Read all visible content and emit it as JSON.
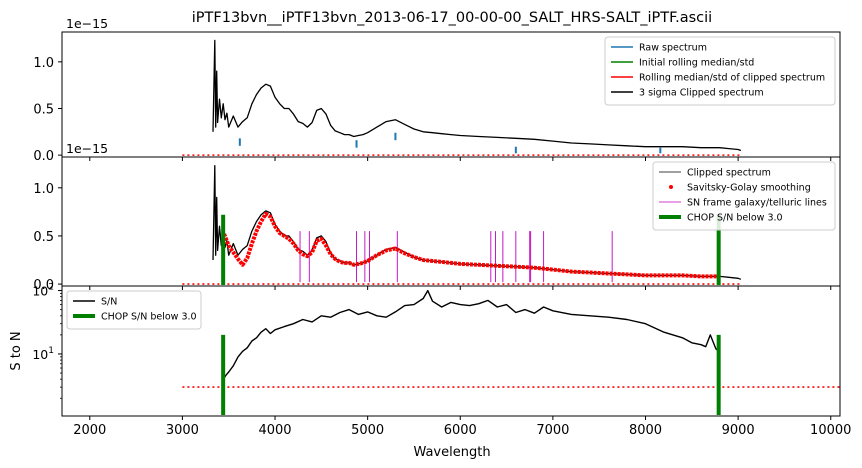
{
  "title": "iPTF13bvn__iPTF13bvn_2013-06-17_00-00-00_SALT_HRS-SALT_iPTF.ascii",
  "colors": {
    "raw": "#1f77b4",
    "green": "#008000",
    "red": "#ff0000",
    "black": "#000000",
    "magenta": "#bf00bf"
  },
  "xaxis": {
    "label": "Wavelength",
    "ticks": [
      "2000",
      "3000",
      "4000",
      "5000",
      "6000",
      "7000",
      "8000",
      "9000",
      "10000"
    ],
    "range": [
      1700,
      10100
    ]
  },
  "chart_data": [
    {
      "type": "line",
      "panel": "top",
      "offset_text": "1e−15",
      "ylim": [
        -0.02,
        1.32
      ],
      "yticks": [
        "0.0",
        "0.5",
        "1.0"
      ],
      "legend_position": "top-right",
      "legend": [
        "Raw spectrum",
        "Initial rolling median/std",
        "Rolling median/std of clipped spectrum",
        "3 sigma Clipped spectrum"
      ],
      "series": [
        {
          "name": "3 sigma Clipped spectrum",
          "x": [
            3330,
            3350,
            3360,
            3370,
            3380,
            3400,
            3420,
            3440,
            3460,
            3480,
            3500,
            3550,
            3600,
            3650,
            3700,
            3750,
            3800,
            3850,
            3900,
            3950,
            4000,
            4050,
            4100,
            4150,
            4200,
            4250,
            4300,
            4350,
            4400,
            4450,
            4500,
            4550,
            4600,
            4650,
            4700,
            4750,
            4800,
            4850,
            4900,
            4950,
            5000,
            5100,
            5200,
            5300,
            5400,
            5500,
            5600,
            5700,
            5800,
            5900,
            6000,
            6200,
            6400,
            6600,
            6800,
            7000,
            7200,
            7400,
            7600,
            7800,
            8000,
            8200,
            8400,
            8600,
            8800,
            8900,
            9000,
            9030
          ],
          "y": [
            0.25,
            1.23,
            0.3,
            0.9,
            0.35,
            0.6,
            0.4,
            0.55,
            0.38,
            0.45,
            0.3,
            0.42,
            0.3,
            0.36,
            0.4,
            0.55,
            0.65,
            0.72,
            0.76,
            0.74,
            0.62,
            0.55,
            0.5,
            0.5,
            0.44,
            0.36,
            0.34,
            0.3,
            0.35,
            0.48,
            0.5,
            0.44,
            0.32,
            0.26,
            0.24,
            0.22,
            0.22,
            0.2,
            0.21,
            0.22,
            0.24,
            0.3,
            0.36,
            0.38,
            0.33,
            0.28,
            0.25,
            0.24,
            0.23,
            0.22,
            0.21,
            0.2,
            0.19,
            0.18,
            0.17,
            0.15,
            0.13,
            0.12,
            0.11,
            0.1,
            0.09,
            0.09,
            0.09,
            0.08,
            0.08,
            0.07,
            0.06,
            0.05
          ]
        },
        {
          "name": "Raw spectrum",
          "x": [
            3620,
            4880,
            5300,
            6600,
            8160
          ],
          "y": [
            0.18,
            0.16,
            0.24,
            0.09,
            0.08
          ]
        },
        {
          "name": "Dotted level",
          "x": [
            3000,
            9040
          ],
          "y": [
            0.0,
            0.0
          ]
        }
      ]
    },
    {
      "type": "line",
      "panel": "middle",
      "offset_text": "1e−15",
      "ylim": [
        -0.02,
        1.32
      ],
      "yticks": [
        "0.0",
        "0.5",
        "1.0"
      ],
      "legend_position": "top-right",
      "legend": [
        "Clipped spectrum",
        "Savitsky-Golay smoothing",
        "SN frame galaxy/telluric lines",
        "CHOP S/N below 3.0"
      ],
      "series": [
        {
          "name": "Clipped spectrum",
          "x": [
            3330,
            3350,
            3360,
            3370,
            3380,
            3400,
            3420,
            3440,
            3460,
            3480,
            3500,
            3550,
            3600,
            3650,
            3700,
            3750,
            3800,
            3850,
            3900,
            3950,
            4000,
            4050,
            4100,
            4150,
            4200,
            4250,
            4300,
            4350,
            4400,
            4450,
            4500,
            4550,
            4600,
            4650,
            4700,
            4750,
            4800,
            4850,
            4900,
            4950,
            5000,
            5100,
            5200,
            5300,
            5400,
            5500,
            5600,
            5700,
            5800,
            5900,
            6000,
            6200,
            6400,
            6600,
            6800,
            7000,
            7200,
            7400,
            7600,
            7800,
            8000,
            8200,
            8400,
            8600,
            8800,
            8900,
            9000,
            9030
          ],
          "y": [
            0.25,
            1.23,
            0.3,
            0.9,
            0.35,
            0.6,
            0.4,
            0.55,
            0.38,
            0.45,
            0.3,
            0.42,
            0.3,
            0.36,
            0.4,
            0.55,
            0.65,
            0.72,
            0.76,
            0.74,
            0.62,
            0.55,
            0.5,
            0.5,
            0.44,
            0.36,
            0.34,
            0.3,
            0.35,
            0.48,
            0.5,
            0.44,
            0.32,
            0.26,
            0.24,
            0.22,
            0.22,
            0.2,
            0.21,
            0.22,
            0.24,
            0.3,
            0.36,
            0.38,
            0.33,
            0.28,
            0.25,
            0.24,
            0.23,
            0.22,
            0.21,
            0.2,
            0.19,
            0.18,
            0.17,
            0.15,
            0.13,
            0.12,
            0.11,
            0.1,
            0.09,
            0.09,
            0.09,
            0.08,
            0.08,
            0.07,
            0.06,
            0.05
          ]
        },
        {
          "name": "Savitsky-Golay smoothing",
          "x": [
            3450,
            3500,
            3550,
            3600,
            3650,
            3700,
            3750,
            3800,
            3850,
            3900,
            3950,
            4000,
            4050,
            4100,
            4150,
            4200,
            4250,
            4300,
            4350,
            4400,
            4450,
            4500,
            4550,
            4600,
            4650,
            4700,
            4750,
            4800,
            4850,
            4900,
            4950,
            5000,
            5100,
            5200,
            5300,
            5400,
            5500,
            5600,
            5700,
            5800,
            5900,
            6000,
            6200,
            6400,
            6600,
            6800,
            7000,
            7200,
            7400,
            7600,
            7800,
            8000,
            8200,
            8400,
            8600,
            8800
          ],
          "y": [
            0.52,
            0.4,
            0.33,
            0.26,
            0.2,
            0.27,
            0.42,
            0.55,
            0.65,
            0.73,
            0.7,
            0.6,
            0.53,
            0.5,
            0.47,
            0.42,
            0.35,
            0.31,
            0.29,
            0.33,
            0.45,
            0.47,
            0.4,
            0.31,
            0.26,
            0.23,
            0.22,
            0.22,
            0.2,
            0.21,
            0.22,
            0.24,
            0.3,
            0.35,
            0.37,
            0.32,
            0.28,
            0.25,
            0.24,
            0.23,
            0.22,
            0.21,
            0.2,
            0.19,
            0.18,
            0.17,
            0.15,
            0.13,
            0.12,
            0.11,
            0.1,
            0.09,
            0.09,
            0.09,
            0.08,
            0.08
          ]
        },
        {
          "name": "SN frame galaxy/telluric lines",
          "x": [
            4270,
            4370,
            4880,
            4970,
            5020,
            5320,
            6330,
            6380,
            6460,
            6600,
            6750,
            6760,
            6900,
            7640
          ],
          "y": [
            0.55,
            0.55,
            0.55,
            0.55,
            0.55,
            0.55,
            0.55,
            0.55,
            0.55,
            0.55,
            0.55,
            0.55,
            0.55,
            0.55
          ]
        },
        {
          "name": "CHOP S/N below 3.0",
          "x": [
            3440,
            8790
          ],
          "y": [
            0.72,
            0.72
          ]
        },
        {
          "name": "Dotted level",
          "x": [
            3000,
            9040
          ],
          "y": [
            0.0,
            0.0
          ]
        }
      ]
    },
    {
      "type": "line",
      "panel": "bottom",
      "yscale": "log",
      "ylabel": "S to N",
      "ylim": [
        1.05,
        118
      ],
      "yticks": [
        "10¹",
        "10²"
      ],
      "legend_position": "top-left",
      "legend": [
        "S/N",
        "CHOP S/N below 3.0"
      ],
      "series": [
        {
          "name": "S/N",
          "x": [
            3440,
            3470,
            3500,
            3550,
            3600,
            3650,
            3700,
            3750,
            3800,
            3850,
            3900,
            3950,
            4000,
            4100,
            4200,
            4300,
            4400,
            4500,
            4600,
            4700,
            4800,
            4900,
            5000,
            5100,
            5200,
            5300,
            5400,
            5500,
            5600,
            5650,
            5700,
            5800,
            5900,
            6000,
            6100,
            6200,
            6300,
            6400,
            6500,
            6600,
            6700,
            6800,
            6900,
            7000,
            7200,
            7400,
            7600,
            7800,
            8000,
            8200,
            8400,
            8500,
            8600,
            8650,
            8700,
            8760,
            8790
          ],
          "y": [
            4.0,
            4.6,
            5.2,
            6.5,
            9.0,
            11.0,
            12.5,
            16.0,
            18.0,
            22.0,
            25.0,
            21.0,
            24.0,
            27.0,
            30.0,
            35.0,
            32.0,
            40.0,
            38.0,
            45.0,
            50.0,
            42.0,
            46.0,
            40.0,
            38.0,
            46.0,
            58.0,
            60.0,
            75.0,
            100.0,
            68.0,
            55.0,
            65.0,
            60.0,
            58.0,
            62.0,
            70.0,
            55.0,
            60.0,
            45.0,
            50.0,
            44.0,
            55.0,
            48.0,
            42.0,
            40.0,
            38.0,
            35.0,
            30.0,
            22.0,
            18.0,
            15.0,
            14.0,
            13.0,
            20.0,
            12.0,
            11.0
          ]
        },
        {
          "name": "CHOP S/N below 3.0",
          "x": [
            3440,
            8790
          ],
          "y": [
            20.0,
            20.0
          ]
        },
        {
          "name": "Dotted level",
          "x": [
            3000,
            10100
          ],
          "y": [
            3.0,
            3.0
          ]
        }
      ]
    }
  ]
}
